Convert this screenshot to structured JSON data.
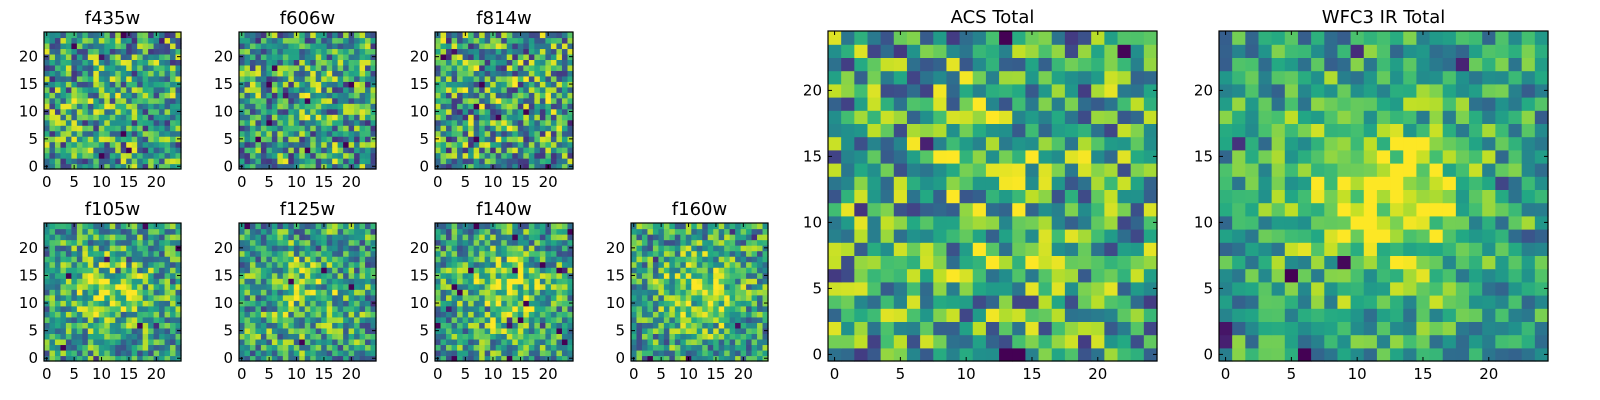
{
  "chart_data": [
    {
      "type": "heatmap",
      "title": "f435w",
      "pixels": 25,
      "xticks": [
        0,
        5,
        10,
        15,
        20
      ],
      "yticks": [
        0,
        5,
        10,
        15,
        20
      ],
      "blob": 0.05,
      "noise": 0.42,
      "spread": 5,
      "seed": 11,
      "grid_rows": 1,
      "grid_col": 0
    },
    {
      "type": "heatmap",
      "title": "f606w",
      "pixels": 25,
      "xticks": [
        0,
        5,
        10,
        15,
        20
      ],
      "yticks": [
        0,
        5,
        10,
        15,
        20
      ],
      "blob": 0.05,
      "noise": 0.42,
      "spread": 5,
      "seed": 23,
      "grid_rows": 1,
      "grid_col": 1
    },
    {
      "type": "heatmap",
      "title": "f814w",
      "pixels": 25,
      "xticks": [
        0,
        5,
        10,
        15,
        20
      ],
      "yticks": [
        0,
        5,
        10,
        15,
        20
      ],
      "blob": 0.05,
      "noise": 0.44,
      "spread": 5,
      "seed": 37,
      "grid_rows": 1,
      "grid_col": 2
    },
    {
      "type": "heatmap",
      "title": "f105w",
      "pixels": 25,
      "xticks": [
        0,
        5,
        10,
        15,
        20
      ],
      "yticks": [
        0,
        5,
        10,
        15,
        20
      ],
      "blob": 0.25,
      "noise": 0.34,
      "spread": 5,
      "seed": 41,
      "grid_rows": 2,
      "grid_col": 0
    },
    {
      "type": "heatmap",
      "title": "f125w",
      "pixels": 25,
      "xticks": [
        0,
        5,
        10,
        15,
        20
      ],
      "yticks": [
        0,
        5,
        10,
        15,
        20
      ],
      "blob": 0.18,
      "noise": 0.36,
      "spread": 5,
      "seed": 53,
      "grid_rows": 2,
      "grid_col": 1
    },
    {
      "type": "heatmap",
      "title": "f140w",
      "pixels": 25,
      "xticks": [
        0,
        5,
        10,
        15,
        20
      ],
      "yticks": [
        0,
        5,
        10,
        15,
        20
      ],
      "blob": 0.3,
      "noise": 0.34,
      "spread": 5,
      "seed": 67,
      "grid_rows": 2,
      "grid_col": 2
    },
    {
      "type": "heatmap",
      "title": "f160w",
      "pixels": 25,
      "xticks": [
        0,
        5,
        10,
        15,
        20
      ],
      "yticks": [
        0,
        5,
        10,
        15,
        20
      ],
      "blob": 0.3,
      "noise": 0.34,
      "spread": 5,
      "seed": 79,
      "grid_rows": 2,
      "grid_col": 3
    },
    {
      "type": "heatmap",
      "title": "ACS Total",
      "pixels": 25,
      "xticks": [
        0,
        5,
        10,
        15,
        20
      ],
      "yticks": [
        0,
        5,
        10,
        15,
        20
      ],
      "blob": 0.12,
      "noise": 0.4,
      "spread": 6,
      "seed": 97,
      "grid_rows": 1,
      "grid_col": 4
    },
    {
      "type": "heatmap",
      "title": "WFC3 IR Total",
      "pixels": 25,
      "xticks": [
        0,
        5,
        10,
        15,
        20
      ],
      "yticks": [
        0,
        5,
        10,
        15,
        20
      ],
      "blob": 0.45,
      "noise": 0.28,
      "spread": 5,
      "seed": 101,
      "grid_rows": 1,
      "grid_col": 5
    }
  ]
}
